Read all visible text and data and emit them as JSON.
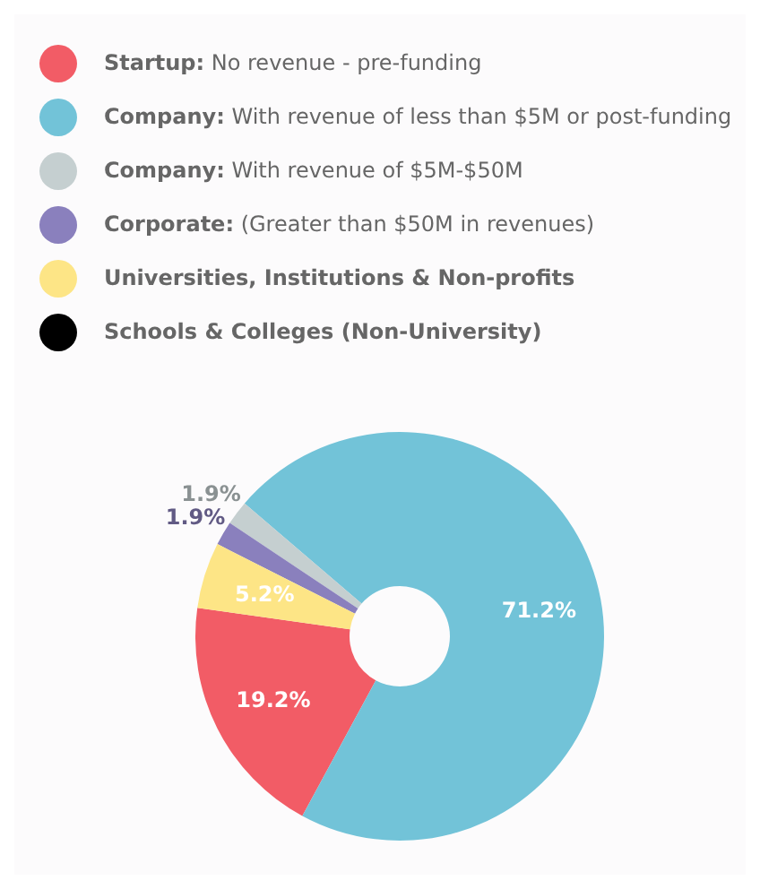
{
  "chart_data": {
    "type": "donut",
    "categories": [
      "Startup: No revenue - pre-funding",
      "Company: With revenue of less than $5M or post-funding",
      "Company: With revenue of $5M-$50M",
      "Corporate: (Greater than $50M in revenues)",
      "Universities, Institutions & Non-profits",
      "Schools & Colleges (Non-University)"
    ],
    "values": [
      19.2,
      71.2,
      1.9,
      1.9,
      5.2,
      0
    ],
    "colors": [
      "#f25c66",
      "#72c3d8",
      "#c5cfd0",
      "#8a80bd",
      "#fde586",
      "#000000"
    ],
    "value_labels": [
      "19.2%",
      "71.2%",
      "1.9%",
      "1.9%",
      "5.2%",
      null
    ],
    "legend": "top"
  }
}
